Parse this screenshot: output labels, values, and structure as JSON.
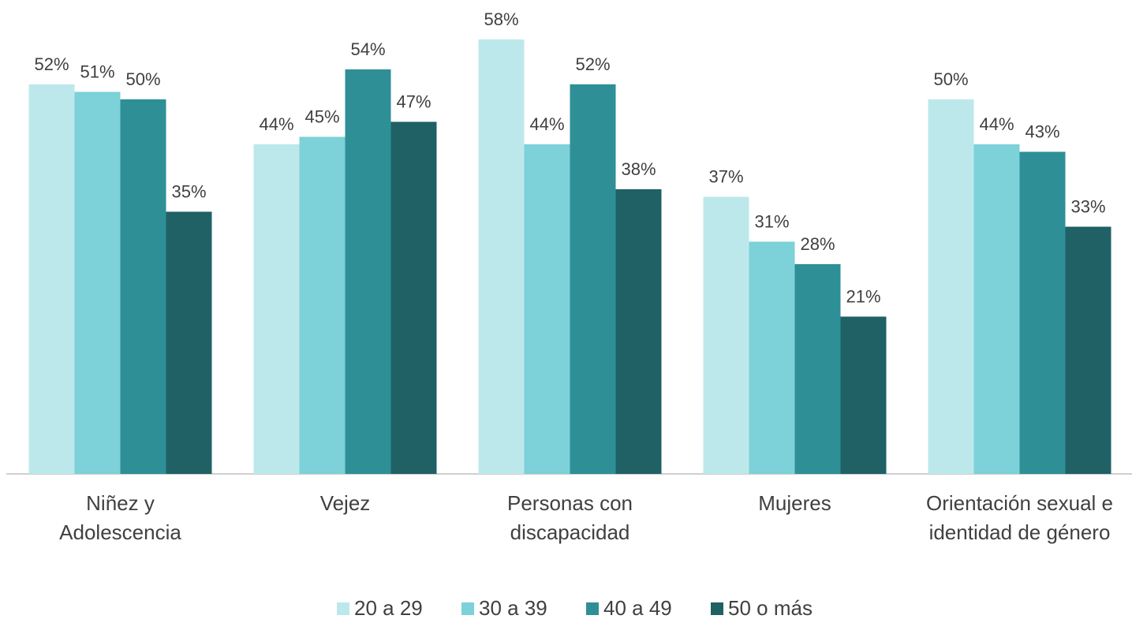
{
  "chart_data": {
    "type": "bar",
    "categories": [
      "Niñez y\nAdolescencia",
      "Vejez",
      "Personas con\ndiscapacidad",
      "Mujeres",
      "Orientación sexual e\nidentidad de género"
    ],
    "series": [
      {
        "name": "20 a 29",
        "color": "#bde8eb",
        "values": [
          52,
          44,
          58,
          37,
          50
        ],
        "value_labels": [
          "52%",
          "44%",
          "58%",
          "37%",
          "50%"
        ]
      },
      {
        "name": "30 a 39",
        "color": "#7dd1d8",
        "values": [
          51,
          45,
          44,
          31,
          44
        ],
        "value_labels": [
          "51%",
          "45%",
          "44%",
          "31%",
          "44%"
        ]
      },
      {
        "name": "40 a 49",
        "color": "#2e8f97",
        "values": [
          50,
          54,
          52,
          28,
          43
        ],
        "value_labels": [
          "50%",
          "54%",
          "52%",
          "28%",
          "43%"
        ]
      },
      {
        "name": "50 o más",
        "color": "#1f6165",
        "values": [
          35,
          47,
          38,
          21,
          33
        ],
        "value_labels": [
          "35%",
          "47%",
          "38%",
          "21%",
          "33%"
        ]
      }
    ],
    "legend": "bottom"
  }
}
